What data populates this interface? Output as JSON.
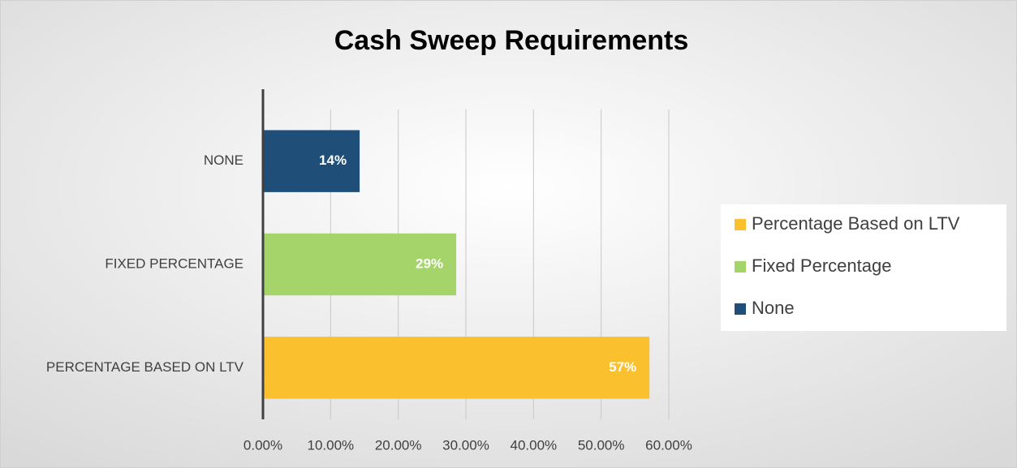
{
  "chart_data": {
    "type": "bar",
    "orientation": "horizontal",
    "title": "Cash Sweep Requirements",
    "categories": [
      "PERCENTAGE BASED ON LTV",
      "FIXED PERCENTAGE",
      "NONE"
    ],
    "series": [
      {
        "name": "Percentage Based on LTV",
        "color": "#fbc02d",
        "values": [
          57.14,
          null,
          null
        ],
        "value_labels": [
          "57%",
          null,
          null
        ]
      },
      {
        "name": "Fixed Percentage",
        "color": "#a5d46a",
        "values": [
          null,
          28.57,
          null
        ],
        "value_labels": [
          null,
          "29%",
          null
        ]
      },
      {
        "name": "None",
        "color": "#1f4e79",
        "values": [
          null,
          null,
          14.29
        ],
        "value_labels": [
          null,
          null,
          "14%"
        ]
      }
    ],
    "xlim": [
      0,
      60
    ],
    "xticks": [
      {
        "value": 0,
        "label": "0.00%"
      },
      {
        "value": 10,
        "label": "10.00%"
      },
      {
        "value": 20,
        "label": "20.00%"
      },
      {
        "value": 30,
        "label": "30.00%"
      },
      {
        "value": 40,
        "label": "40.00%"
      },
      {
        "value": 50,
        "label": "50.00%"
      },
      {
        "value": 60,
        "label": "60.00%"
      }
    ],
    "grid": true,
    "legend": "right"
  }
}
